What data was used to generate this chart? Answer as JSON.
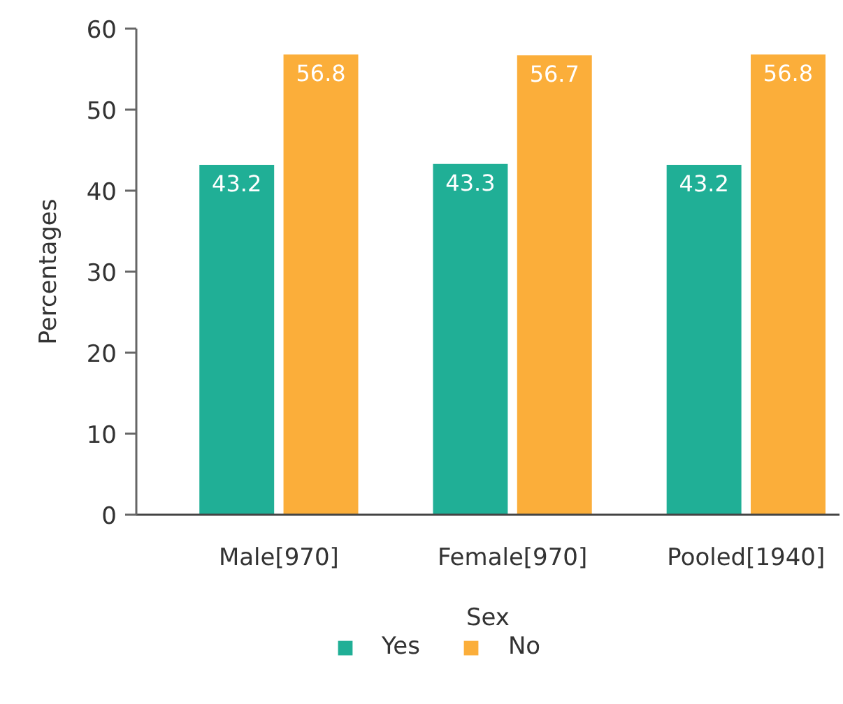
{
  "chart_data": {
    "type": "bar",
    "xlabel": "Sex",
    "ylabel": "Percentages",
    "categories": [
      "Male[970]",
      "Female[970]",
      "Pooled[1940]"
    ],
    "series": [
      {
        "name": "Yes",
        "color": "#20af96",
        "values": [
          43.2,
          43.3,
          43.2
        ]
      },
      {
        "name": "No",
        "color": "#fbae3a",
        "values": [
          56.8,
          56.7,
          56.8
        ]
      }
    ],
    "ylim": [
      0,
      60
    ],
    "yticks": [
      0,
      10,
      20,
      30,
      40,
      50,
      60
    ],
    "data_labels": true,
    "grid": false,
    "legend": "bottom"
  }
}
